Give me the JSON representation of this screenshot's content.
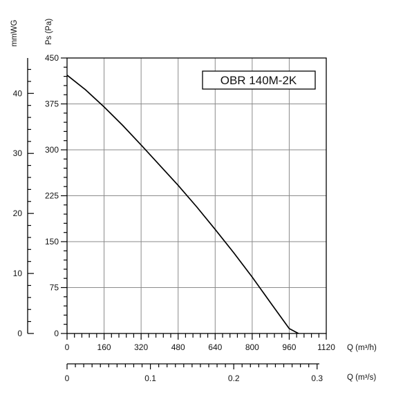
{
  "chart_data": {
    "type": "line",
    "title": "OBR 140M-2K",
    "x": [
      0,
      80,
      160,
      240,
      320,
      400,
      480,
      560,
      640,
      720,
      800,
      880,
      960,
      1000,
      1040
    ],
    "series": [
      {
        "values": [
          422,
          398,
          370,
          340,
          308,
          275,
          242,
          207,
          170,
          132,
          92,
          50,
          8,
          0,
          0
        ]
      }
    ],
    "xlabel": "Q (m³/h)",
    "xlim": [
      0,
      1120
    ],
    "xticks": [
      "0",
      "160",
      "320",
      "480",
      "640",
      "800",
      "960",
      "1120"
    ],
    "ylabel": "Ps (Pa)",
    "ylim": [
      0,
      450
    ],
    "yticks": [
      "0",
      "75",
      "150",
      "225",
      "300",
      "375",
      "450"
    ],
    "y2label": "mmWG",
    "y2lim": [
      0,
      45.9
    ],
    "y2ticks": [
      "0",
      "10",
      "20",
      "30",
      "40"
    ],
    "x2label": "Q (m³/s)",
    "x2lim": [
      0,
      0.311
    ],
    "x2ticks": [
      "0",
      "0.1",
      "0.2",
      "0.3"
    ],
    "grid": true,
    "line_color": "#000000",
    "grid_color": "#8a8a8a"
  }
}
